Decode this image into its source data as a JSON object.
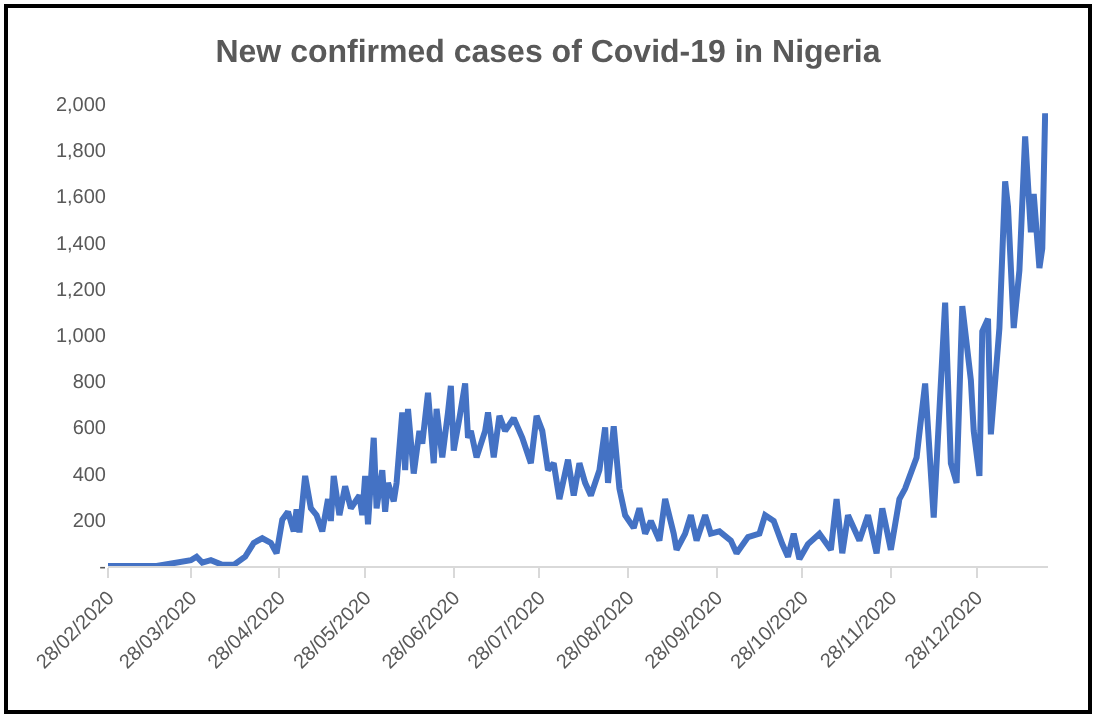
{
  "chart_data": {
    "type": "line",
    "title": "New confirmed cases of Covid-19 in Nigeria",
    "x": [
      "2020-02-28",
      "2020-03-16",
      "2020-03-28",
      "2020-03-30",
      "2020-04-01",
      "2020-04-04",
      "2020-04-08",
      "2020-04-12",
      "2020-04-16",
      "2020-04-19",
      "2020-04-22",
      "2020-04-25",
      "2020-04-27",
      "2020-04-29",
      "2020-05-01",
      "2020-05-03",
      "2020-05-04",
      "2020-05-05",
      "2020-05-07",
      "2020-05-09",
      "2020-05-11",
      "2020-05-13",
      "2020-05-15",
      "2020-05-16",
      "2020-05-17",
      "2020-05-19",
      "2020-05-21",
      "2020-05-23",
      "2020-05-26",
      "2020-05-27",
      "2020-05-28",
      "2020-05-29",
      "2020-05-31",
      "2020-06-01",
      "2020-06-03",
      "2020-06-04",
      "2020-06-05",
      "2020-06-07",
      "2020-06-08",
      "2020-06-10",
      "2020-06-11",
      "2020-06-12",
      "2020-06-14",
      "2020-06-16",
      "2020-06-17",
      "2020-06-19",
      "2020-06-21",
      "2020-06-22",
      "2020-06-24",
      "2020-06-26",
      "2020-06-27",
      "2020-06-28",
      "2020-06-30",
      "2020-07-02",
      "2020-07-03",
      "2020-07-04",
      "2020-07-06",
      "2020-07-09",
      "2020-07-10",
      "2020-07-12",
      "2020-07-14",
      "2020-07-16",
      "2020-07-19",
      "2020-07-22",
      "2020-07-25",
      "2020-07-27",
      "2020-07-29",
      "2020-07-31",
      "2020-08-02",
      "2020-08-04",
      "2020-08-07",
      "2020-08-09",
      "2020-08-11",
      "2020-08-13",
      "2020-08-15",
      "2020-08-18",
      "2020-08-20",
      "2020-08-21",
      "2020-08-23",
      "2020-08-25",
      "2020-08-27",
      "2020-08-30",
      "2020-09-01",
      "2020-09-03",
      "2020-09-05",
      "2020-09-08",
      "2020-09-10",
      "2020-09-13",
      "2020-09-14",
      "2020-09-17",
      "2020-09-19",
      "2020-09-21",
      "2020-09-24",
      "2020-09-26",
      "2020-09-29",
      "2020-10-03",
      "2020-10-05",
      "2020-10-09",
      "2020-10-13",
      "2020-10-15",
      "2020-10-18",
      "2020-10-21",
      "2020-10-23",
      "2020-10-25",
      "2020-10-27",
      "2020-10-30",
      "2020-11-03",
      "2020-11-07",
      "2020-11-09",
      "2020-11-11",
      "2020-11-13",
      "2020-11-17",
      "2020-11-20",
      "2020-11-23",
      "2020-11-25",
      "2020-11-28",
      "2020-12-01",
      "2020-12-03",
      "2020-12-07",
      "2020-12-10",
      "2020-12-13",
      "2020-12-17",
      "2020-12-19",
      "2020-12-21",
      "2020-12-23",
      "2020-12-26",
      "2020-12-27",
      "2020-12-29",
      "2020-12-30",
      "2021-01-01",
      "2021-01-02",
      "2021-01-05",
      "2021-01-07",
      "2021-01-08",
      "2021-01-10",
      "2021-01-12",
      "2021-01-14",
      "2021-01-16",
      "2021-01-17",
      "2021-01-19",
      "2021-01-20",
      "2021-01-21"
    ],
    "series": [
      {
        "color": "#4472c4",
        "values": [
          0,
          0,
          25,
          40,
          15,
          25,
          5,
          5,
          40,
          100,
          120,
          100,
          55,
          200,
          235,
          150,
          245,
          145,
          390,
          250,
          220,
          150,
          290,
          195,
          390,
          220,
          345,
          250,
          305,
          220,
          390,
          180,
          555,
          250,
          415,
          235,
          360,
          280,
          360,
          665,
          415,
          680,
          400,
          585,
          530,
          750,
          445,
          680,
          470,
          665,
          780,
          500,
          640,
          790,
          555,
          585,
          470,
          585,
          665,
          470,
          650,
          585,
          640,
          555,
          445,
          650,
          585,
          415,
          445,
          290,
          460,
          305,
          445,
          360,
          305,
          415,
          600,
          360,
          605,
          335,
          220,
          165,
          250,
          140,
          195,
          110,
          290,
          140,
          70,
          140,
          220,
          110,
          220,
          140,
          150,
          110,
          55,
          125,
          140,
          220,
          195,
          95,
          40,
          140,
          30,
          95,
          140,
          70,
          290,
          55,
          220,
          110,
          220,
          55,
          250,
          70,
          290,
          335,
          470,
          790,
          210,
          1140,
          445,
          360,
          1125,
          805,
          585,
          390,
          1015,
          1070,
          570,
          1030,
          1665,
          1555,
          1030,
          1280,
          1860,
          1445,
          1610,
          1290,
          1375,
          1960
        ]
      }
    ],
    "xlim": [
      "2020-02-28",
      "2021-01-22"
    ],
    "xticks": [
      {
        "value": "2020-02-28",
        "label": "28/02/2020"
      },
      {
        "value": "2020-03-28",
        "label": "28/03/2020"
      },
      {
        "value": "2020-04-28",
        "label": "28/04/2020"
      },
      {
        "value": "2020-05-28",
        "label": "28/05/2020"
      },
      {
        "value": "2020-06-28",
        "label": "28/06/2020"
      },
      {
        "value": "2020-07-28",
        "label": "28/07/2020"
      },
      {
        "value": "2020-08-28",
        "label": "28/08/2020"
      },
      {
        "value": "2020-09-28",
        "label": "28/09/2020"
      },
      {
        "value": "2020-10-28",
        "label": "28/10/2020"
      },
      {
        "value": "2020-11-28",
        "label": "28/11/2020"
      },
      {
        "value": "2020-12-28",
        "label": "28/12/2020"
      }
    ],
    "ylim": [
      0,
      2000
    ],
    "yticks": [
      {
        "value": 0,
        "label": "-"
      },
      {
        "value": 200,
        "label": "200"
      },
      {
        "value": 400,
        "label": "400"
      },
      {
        "value": 600,
        "label": "600"
      },
      {
        "value": 800,
        "label": "800"
      },
      {
        "value": 1000,
        "label": "1,000"
      },
      {
        "value": 1200,
        "label": "1,200"
      },
      {
        "value": 1400,
        "label": "1,400"
      },
      {
        "value": 1600,
        "label": "1,600"
      },
      {
        "value": 1800,
        "label": "1,800"
      },
      {
        "value": 2000,
        "label": "2,000"
      }
    ],
    "grid": false
  }
}
